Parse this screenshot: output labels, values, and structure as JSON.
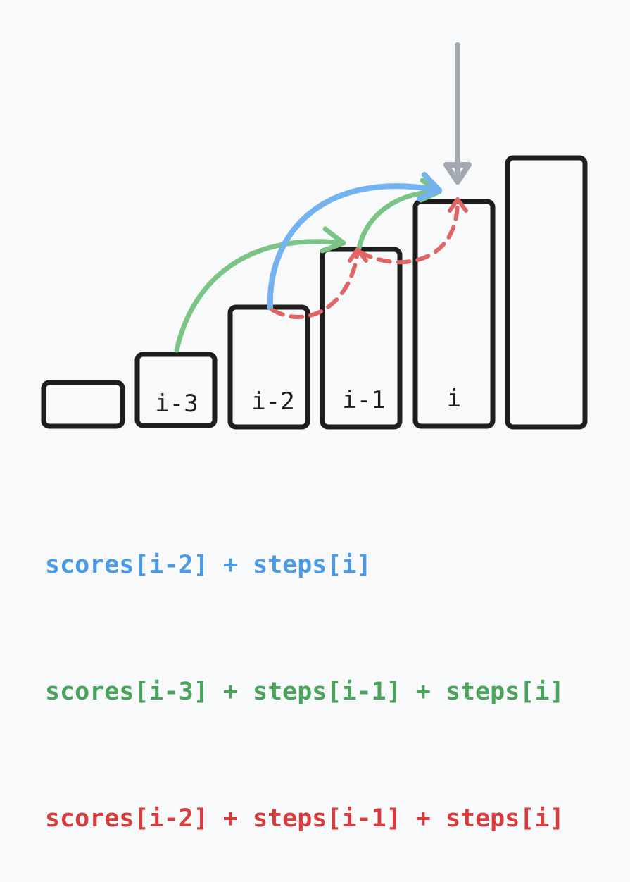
{
  "bars": [
    {
      "label": ""
    },
    {
      "label": "i-3"
    },
    {
      "label": "i-2"
    },
    {
      "label": "i-1"
    },
    {
      "label": "i"
    },
    {
      "label": ""
    }
  ],
  "formulas": [
    {
      "text": "scores[i-2] + steps[i]",
      "color": "#4a9ae6"
    },
    {
      "text": "scores[i-3] + steps[i-1] + steps[i]",
      "color": "#4aa35a"
    },
    {
      "text": "scores[i-2] + steps[i-1] + steps[i]",
      "color": "#d83b3b"
    }
  ],
  "colors": {
    "outline": "#1e1e1e",
    "blue_arrow": "#74b3ef",
    "green_arrow": "#7cc486",
    "red_arrow": "#e06666",
    "pointer": "#a3a9b3"
  }
}
